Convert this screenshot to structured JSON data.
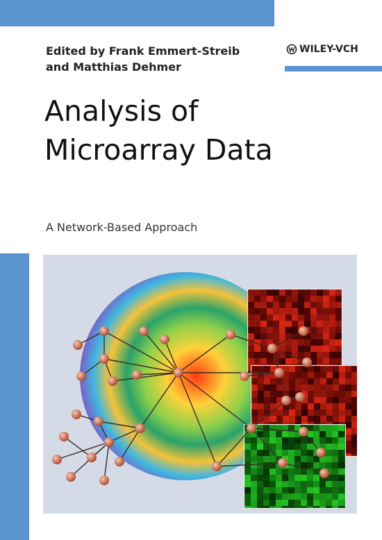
{
  "editors": {
    "line1": "Edited by Frank Emmert-Streib",
    "line2": "and Matthias Dehmer"
  },
  "publisher": "WILEY-VCH",
  "title": {
    "line1": "Analysis of",
    "line2": "Microarray Data"
  },
  "subtitle": "A Network-Based Approach"
}
